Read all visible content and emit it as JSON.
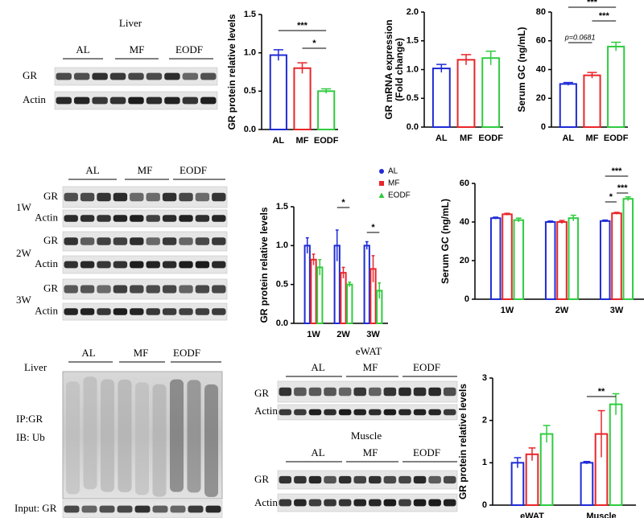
{
  "chart_data": [
    {
      "type": "bar",
      "ylabel": [
        "GR protein relative levels"
      ],
      "categories": [
        "AL",
        "MF",
        "EODF"
      ],
      "values": [
        0.97,
        0.8,
        0.5
      ],
      "errors": [
        0.07,
        0.07,
        0.03
      ],
      "colors": [
        "#1f2bd6",
        "#e8262a",
        "#2fcc3f"
      ],
      "ylim": [
        0,
        1.5
      ],
      "yticks": [
        {
          "value": 0,
          "label": "0.0"
        },
        {
          "value": 0.5,
          "label": "0.5"
        },
        {
          "value": 1,
          "label": "1.0"
        },
        {
          "value": 1.5,
          "label": "1.5"
        }
      ],
      "annotations": [
        "***",
        "*"
      ]
    },
    {
      "type": "bar",
      "ylabel": [
        "GR mRNA expression",
        "(Fold change)"
      ],
      "categories": [
        "AL",
        "MF",
        "EODF"
      ],
      "values": [
        1.02,
        1.17,
        1.2
      ],
      "errors": [
        0.07,
        0.09,
        0.12
      ],
      "colors": [
        "#1f2bd6",
        "#e8262a",
        "#2fcc3f"
      ],
      "ylim": [
        0,
        2
      ],
      "yticks": [
        {
          "value": 0,
          "label": "0.0"
        },
        {
          "value": 0.5,
          "label": "0.5"
        },
        {
          "value": 1,
          "label": "1.0"
        },
        {
          "value": 1.5,
          "label": "1.5"
        },
        {
          "value": 2,
          "label": "2.0"
        }
      ],
      "annotations": []
    },
    {
      "type": "bar",
      "ylabel": [
        "Serum GC (ng/mL)"
      ],
      "categories": [
        "AL",
        "MF",
        "EODF"
      ],
      "values": [
        30,
        36,
        56
      ],
      "errors": [
        1,
        2,
        3
      ],
      "colors": [
        "#1f2bd6",
        "#e8262a",
        "#2fcc3f"
      ],
      "ylim": [
        0,
        80
      ],
      "yticks": [
        0,
        20,
        40,
        60,
        80
      ],
      "annotations": [
        "***",
        "***",
        "p=0.0681"
      ]
    },
    {
      "type": "grouped-bar",
      "ylabel": [
        "GR protein relative levels"
      ],
      "categories": [
        "1W",
        "2W",
        "3W"
      ],
      "series": [
        {
          "name": "AL",
          "color": "#1f2bd6",
          "values": [
            1.0,
            1.0,
            1.0
          ],
          "errors": [
            0.1,
            0.2,
            0.05
          ]
        },
        {
          "name": "MF",
          "color": "#e8262a",
          "values": [
            0.82,
            0.65,
            0.7
          ],
          "errors": [
            0.07,
            0.07,
            0.17
          ]
        },
        {
          "name": "EODF",
          "color": "#2fcc3f",
          "values": [
            0.72,
            0.5,
            0.42
          ],
          "errors": [
            0.1,
            0.03,
            0.1
          ]
        }
      ],
      "ylim": [
        0,
        1.5
      ],
      "yticks": [
        {
          "value": 0,
          "label": "0.0"
        },
        {
          "value": 0.5,
          "label": "0.5"
        },
        {
          "value": 1,
          "label": "1.0"
        },
        {
          "value": 1.5,
          "label": "1.5"
        }
      ],
      "legend": true,
      "annotations": [
        "*",
        "*"
      ]
    },
    {
      "type": "grouped-bar",
      "ylabel": [
        "Serum GC (ng/mL)"
      ],
      "categories": [
        "1W",
        "2W",
        "3W"
      ],
      "series": [
        {
          "name": "AL",
          "color": "#1f2bd6",
          "values": [
            42,
            40,
            40.5
          ],
          "errors": [
            0.5,
            0.5,
            0.5
          ]
        },
        {
          "name": "MF",
          "color": "#e8262a",
          "values": [
            44,
            40,
            44.5
          ],
          "errors": [
            0.5,
            0.8,
            0.5
          ]
        },
        {
          "name": "EODF",
          "color": "#2fcc3f",
          "values": [
            41,
            42,
            52
          ],
          "errors": [
            1,
            1.5,
            1
          ]
        }
      ],
      "ylim": [
        0,
        60
      ],
      "yticks": [
        0,
        20,
        40,
        60
      ],
      "legend": false,
      "annotations": [
        "*",
        "***",
        "***"
      ]
    },
    {
      "type": "grouped-bar",
      "ylabel": [
        "GR protein relative levels"
      ],
      "categories": [
        "eWAT",
        "Muscle"
      ],
      "series": [
        {
          "name": "AL",
          "color": "#1f2bd6",
          "values": [
            1.0,
            1.0
          ],
          "errors": [
            0.12,
            0.03
          ]
        },
        {
          "name": "MF",
          "color": "#e8262a",
          "values": [
            1.2,
            1.68
          ],
          "errors": [
            0.15,
            0.55
          ]
        },
        {
          "name": "EODF",
          "color": "#2fcc3f",
          "values": [
            1.68,
            2.38
          ],
          "errors": [
            0.2,
            0.25
          ]
        }
      ],
      "ylim": [
        0,
        3
      ],
      "yticks": [
        0,
        1,
        2,
        3
      ],
      "legend": false,
      "annotations": [
        "**"
      ]
    }
  ],
  "blots": {
    "a": {
      "tissue": "Liver",
      "groups": [
        "AL",
        "MF",
        "EODF"
      ],
      "rows": [
        "GR",
        "Actin"
      ]
    },
    "b": {
      "groups": [
        "AL",
        "MF",
        "EODF"
      ],
      "rows": [
        "GR",
        "Actin",
        "GR",
        "Actin",
        "GR",
        "Actin"
      ],
      "times": [
        "1W",
        "2W",
        "3W"
      ]
    },
    "c": {
      "tissue": "Liver",
      "groups": [
        "AL",
        "MF",
        "EODF"
      ],
      "labels": [
        "IP:GR",
        "IB: Ub"
      ],
      "input": "Input: GR"
    },
    "d": {
      "tissues": [
        "eWAT",
        "Muscle"
      ],
      "groups": [
        "AL",
        "MF",
        "EODF"
      ],
      "groups2": [
        "AL",
        "MF",
        "EODF"
      ],
      "rows": [
        "GR",
        "Actin"
      ],
      "rows2": [
        "GR",
        "Actin"
      ]
    }
  }
}
